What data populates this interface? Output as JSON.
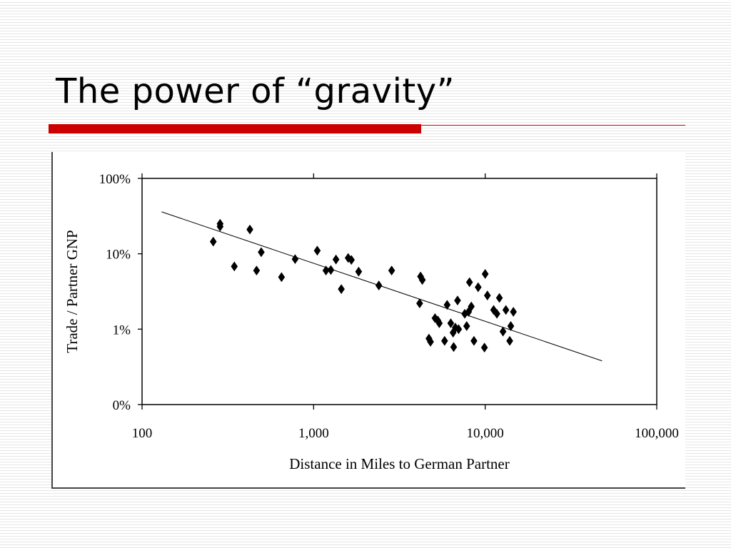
{
  "slide": {
    "title": "The power of “gravity”",
    "accent_color": "#cc0000"
  },
  "chart_data": {
    "type": "scatter",
    "title": "",
    "xlabel": "Distance in Miles to German Partner",
    "ylabel": "Trade / Partner GNP",
    "x_scale": "log",
    "y_scale": "log",
    "xlim": [
      100,
      100000
    ],
    "ylim": [
      0.1,
      100
    ],
    "x_ticks": [
      100,
      1000,
      10000,
      100000
    ],
    "x_tick_labels": [
      "100",
      "1,000",
      "10,000",
      "100,000"
    ],
    "y_ticks": [
      0.1,
      1,
      10,
      100
    ],
    "y_tick_labels": [
      "0%",
      "1%",
      "10%",
      "100%"
    ],
    "grid": false,
    "legend": "none",
    "marker": "diamond",
    "series": [
      {
        "name": "",
        "points": [
          {
            "x": 260,
            "y": 14.5
          },
          {
            "x": 285,
            "y": 25
          },
          {
            "x": 285,
            "y": 23
          },
          {
            "x": 345,
            "y": 6.8
          },
          {
            "x": 425,
            "y": 21
          },
          {
            "x": 465,
            "y": 6
          },
          {
            "x": 495,
            "y": 10.5
          },
          {
            "x": 650,
            "y": 4.9
          },
          {
            "x": 780,
            "y": 8.5
          },
          {
            "x": 1050,
            "y": 11
          },
          {
            "x": 1180,
            "y": 6
          },
          {
            "x": 1260,
            "y": 6.1
          },
          {
            "x": 1350,
            "y": 8.4
          },
          {
            "x": 1450,
            "y": 3.4
          },
          {
            "x": 1590,
            "y": 8.8
          },
          {
            "x": 1660,
            "y": 8.3
          },
          {
            "x": 1830,
            "y": 5.8
          },
          {
            "x": 2400,
            "y": 3.8
          },
          {
            "x": 2850,
            "y": 6
          },
          {
            "x": 4150,
            "y": 2.2
          },
          {
            "x": 4200,
            "y": 5
          },
          {
            "x": 4300,
            "y": 4.5
          },
          {
            "x": 4700,
            "y": 0.75
          },
          {
            "x": 4800,
            "y": 0.68
          },
          {
            "x": 5100,
            "y": 1.4
          },
          {
            "x": 5300,
            "y": 1.3
          },
          {
            "x": 5400,
            "y": 1.2
          },
          {
            "x": 5800,
            "y": 0.7
          },
          {
            "x": 6000,
            "y": 2.1
          },
          {
            "x": 6300,
            "y": 1.2
          },
          {
            "x": 6500,
            "y": 0.9
          },
          {
            "x": 6550,
            "y": 0.58
          },
          {
            "x": 6700,
            "y": 1.05
          },
          {
            "x": 6900,
            "y": 2.4
          },
          {
            "x": 7000,
            "y": 1.0
          },
          {
            "x": 7600,
            "y": 1.6
          },
          {
            "x": 7800,
            "y": 1.1
          },
          {
            "x": 8000,
            "y": 1.7
          },
          {
            "x": 8100,
            "y": 4.2
          },
          {
            "x": 8300,
            "y": 2.0
          },
          {
            "x": 8600,
            "y": 0.7
          },
          {
            "x": 9100,
            "y": 3.6
          },
          {
            "x": 9900,
            "y": 0.57
          },
          {
            "x": 10000,
            "y": 5.4
          },
          {
            "x": 10300,
            "y": 2.8
          },
          {
            "x": 11200,
            "y": 1.8
          },
          {
            "x": 11700,
            "y": 1.6
          },
          {
            "x": 12100,
            "y": 2.6
          },
          {
            "x": 12700,
            "y": 0.93
          },
          {
            "x": 13200,
            "y": 1.8
          },
          {
            "x": 13900,
            "y": 0.7
          },
          {
            "x": 14100,
            "y": 1.1
          },
          {
            "x": 14600,
            "y": 1.7
          }
        ]
      }
    ],
    "trendline": {
      "x": [
        130,
        48000
      ],
      "y": [
        36,
        0.38
      ]
    }
  }
}
